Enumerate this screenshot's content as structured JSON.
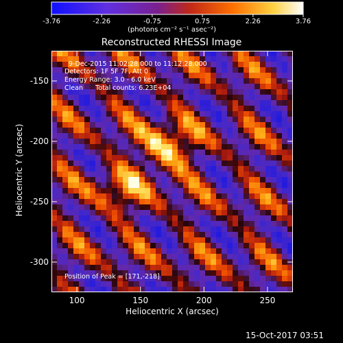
{
  "colorbar": {
    "tick_labels": [
      "-3.76",
      "-2.26",
      "-0.75",
      "0.75",
      "2.26",
      "3.76"
    ],
    "tick_values": [
      -3.76,
      -2.26,
      -0.75,
      0.75,
      2.26,
      3.76
    ],
    "range": [
      -3.76,
      3.76
    ],
    "colors": [
      "#1010ff",
      "#7028c8",
      "#c03020",
      "#ff8000",
      "#ffd840",
      "#ffffff"
    ],
    "unit_label": "(photons cm⁻² s⁻¹ asec⁻²)"
  },
  "title": "Reconstructed RHESSI Image",
  "axes": {
    "xlabel": "Heliocentric X (arcsec)",
    "ylabel": "Heliocentric Y (arcsec)",
    "xlim": [
      80,
      270
    ],
    "ylim": [
      -325,
      -125
    ],
    "xtick_labels": [
      "100",
      "150",
      "200",
      "250"
    ],
    "xtick_values": [
      100,
      150,
      200,
      250
    ],
    "ytick_labels": [
      "-150",
      "-200",
      "-250",
      "-300"
    ],
    "ytick_values": [
      -150,
      -200,
      -250,
      -300
    ]
  },
  "annotations": {
    "line1": "9-Dec-2015 11:02:28.000 to 11:12:28.000",
    "line2": "Detectors: 1F 5F 7F, Att 0",
    "line3": "Energy Range: 3.0 - 6.0 keV",
    "line4": "Clean      Total counts: 6.23E+04",
    "peak": "Position of Peak = [171,-218]"
  },
  "peak_position": [
    171,
    -218
  ],
  "footer_timestamp": "15-Oct-2017 03:51"
}
